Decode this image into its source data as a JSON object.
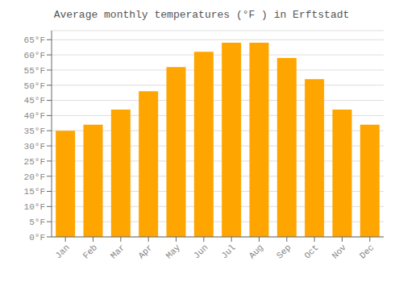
{
  "chart_data": {
    "type": "bar",
    "title": "Average monthly temperatures (°F ) in Erftstadt",
    "categories": [
      "Jan",
      "Feb",
      "Mar",
      "Apr",
      "May",
      "Jun",
      "Jul",
      "Aug",
      "Sep",
      "Oct",
      "Nov",
      "Dec"
    ],
    "values": [
      35,
      37,
      42,
      48,
      56,
      61,
      64,
      64,
      59,
      52,
      42,
      37
    ],
    "color": "#FFA500",
    "ylim": [
      0,
      68
    ],
    "yticks": [
      {
        "value": 0,
        "label": "0°F"
      },
      {
        "value": 5,
        "label": "5°F"
      },
      {
        "value": 10,
        "label": "10°F"
      },
      {
        "value": 15,
        "label": "15°F"
      },
      {
        "value": 20,
        "label": "20°F"
      },
      {
        "value": 25,
        "label": "25°F"
      },
      {
        "value": 30,
        "label": "30°F"
      },
      {
        "value": 35,
        "label": "35°F"
      },
      {
        "value": 40,
        "label": "40°F"
      },
      {
        "value": 45,
        "label": "45°F"
      },
      {
        "value": 50,
        "label": "50°F"
      },
      {
        "value": 55,
        "label": "55°F"
      },
      {
        "value": 60,
        "label": "60°F"
      },
      {
        "value": 65,
        "label": "65°F"
      }
    ],
    "grid": true
  }
}
